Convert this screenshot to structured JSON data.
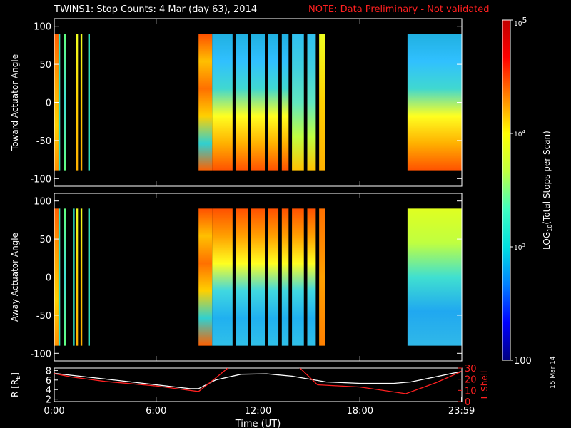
{
  "title": "TWINS1: Stop Counts:  4 Mar (day  63), 2014",
  "note": "NOTE: Data Preliminary - Not validated",
  "date_stamp": "15 Mar 14",
  "colors": {
    "note": "#ff2020",
    "r_line": "#ffffff",
    "lshell_line": "#ff2020",
    "background": "#000000",
    "colorbar_stops": [
      "#000080",
      "#0000ff",
      "#0080ff",
      "#00e0e0",
      "#40ffc0",
      "#c0ff40",
      "#ffff00",
      "#ff8000",
      "#ff0000",
      "#c00000"
    ]
  },
  "chart_data": [
    {
      "type": "heatmap",
      "id": "toward",
      "ylabel": "Toward Actuator Angle",
      "ylim": [
        -110,
        110
      ],
      "yticks": [
        100,
        50,
        0,
        -50,
        -100
      ],
      "data_angle_range": [
        -90,
        90
      ],
      "x_unit": "hours UT",
      "xlim": [
        0,
        24
      ],
      "data_intervals": [
        {
          "start": 0.0,
          "end": 0.25,
          "profile": "orange-yellow"
        },
        {
          "start": 0.25,
          "end": 0.35,
          "profile": "cyan"
        },
        {
          "start": 0.55,
          "end": 0.7,
          "profile": "cyan-green"
        },
        {
          "start": 1.3,
          "end": 1.4,
          "profile": "yellow"
        },
        {
          "start": 1.55,
          "end": 1.65,
          "profile": "yellow"
        },
        {
          "start": 2.0,
          "end": 2.1,
          "profile": "cyan"
        },
        {
          "start": 8.5,
          "end": 9.3,
          "profile": "mixed-orange"
        },
        {
          "start": 9.3,
          "end": 10.5,
          "profile": "blue-top-yellow-bottom"
        },
        {
          "start": 10.7,
          "end": 11.4,
          "profile": "blue-top-yellow-bottom"
        },
        {
          "start": 11.6,
          "end": 12.4,
          "profile": "blue-top-yellow-bottom"
        },
        {
          "start": 12.6,
          "end": 13.2,
          "profile": "blue-top-yellow-bottom"
        },
        {
          "start": 13.4,
          "end": 13.8,
          "profile": "blue-top-yellow-bottom"
        },
        {
          "start": 14.0,
          "end": 14.7,
          "profile": "cyan-mid"
        },
        {
          "start": 14.9,
          "end": 15.4,
          "profile": "cyan-mid"
        },
        {
          "start": 15.6,
          "end": 15.95,
          "profile": "yellow"
        },
        {
          "start": 20.8,
          "end": 23.99,
          "profile": "blue-top-yellow-bottom"
        }
      ]
    },
    {
      "type": "heatmap",
      "id": "away",
      "ylabel": "Away Actuator Angle",
      "ylim": [
        -110,
        110
      ],
      "yticks": [
        100,
        50,
        0,
        -50,
        -100
      ],
      "data_angle_range": [
        -90,
        90
      ],
      "x_unit": "hours UT",
      "xlim": [
        0,
        24
      ],
      "data_intervals": [
        {
          "start": 0.0,
          "end": 0.25,
          "profile": "orange-yellow"
        },
        {
          "start": 0.25,
          "end": 0.35,
          "profile": "cyan"
        },
        {
          "start": 0.55,
          "end": 0.7,
          "profile": "cyan-green"
        },
        {
          "start": 1.1,
          "end": 1.2,
          "profile": "cyan"
        },
        {
          "start": 1.3,
          "end": 1.4,
          "profile": "yellow"
        },
        {
          "start": 1.55,
          "end": 1.65,
          "profile": "yellow"
        },
        {
          "start": 2.0,
          "end": 2.1,
          "profile": "cyan"
        },
        {
          "start": 8.5,
          "end": 9.3,
          "profile": "mixed-orange"
        },
        {
          "start": 9.3,
          "end": 10.5,
          "profile": "orange-top-blue-bottom"
        },
        {
          "start": 10.7,
          "end": 11.4,
          "profile": "orange-top-blue-bottom"
        },
        {
          "start": 11.6,
          "end": 12.4,
          "profile": "orange-top-blue-bottom"
        },
        {
          "start": 12.6,
          "end": 13.2,
          "profile": "orange-top-blue-bottom"
        },
        {
          "start": 13.4,
          "end": 13.8,
          "profile": "orange-top-blue-bottom"
        },
        {
          "start": 14.0,
          "end": 14.7,
          "profile": "orange-top-blue-bottom"
        },
        {
          "start": 14.9,
          "end": 15.4,
          "profile": "orange-top-blue-bottom"
        },
        {
          "start": 15.6,
          "end": 15.95,
          "profile": "orange"
        },
        {
          "start": 20.8,
          "end": 23.99,
          "profile": "yellow-top-blue-bottom"
        }
      ]
    },
    {
      "type": "line",
      "id": "orbit",
      "xlabel": "Time (UT)",
      "xlim": [
        0,
        24
      ],
      "xticks": [
        0,
        6,
        12,
        18,
        23.983
      ],
      "xtick_labels": [
        "0:00",
        "6:00",
        "12:00",
        "18:00",
        "23:59"
      ],
      "ylabel_left": "R [R",
      "ylabel_left_sub": "E",
      "ylabel_left_end": "]",
      "ylim_left": [
        1.5,
        8.5
      ],
      "yticks_left": [
        8,
        6,
        4,
        2
      ],
      "ylabel_right": "L Shell",
      "ylim_right": [
        0,
        30
      ],
      "yticks_right": [
        30,
        20,
        10,
        0
      ],
      "series": [
        {
          "axis": "left",
          "color": "#ffffff",
          "x": [
            0,
            1,
            3,
            6,
            8,
            8.5,
            9.5,
            11,
            12.5,
            14,
            16,
            18,
            20,
            21,
            22.5,
            23.99
          ],
          "y": [
            7.4,
            7.0,
            6.2,
            5.0,
            4.2,
            4.2,
            6.0,
            7.2,
            7.3,
            6.8,
            5.6,
            5.3,
            5.3,
            5.6,
            6.7,
            7.8
          ]
        },
        {
          "axis": "right",
          "color": "#ff2020",
          "x": [
            0,
            1,
            3,
            6,
            8.5,
            9.5,
            10.3,
            14.4,
            15.5,
            18,
            20.7,
            22.5,
            23.99
          ],
          "y": [
            25,
            22,
            18,
            14,
            9,
            21,
            31,
            31,
            15,
            13,
            7,
            17,
            27
          ]
        }
      ]
    },
    {
      "type": "colorbar",
      "id": "colorbar",
      "label_main": "LOG",
      "label_sub": "10",
      "label_rest": "(Total Stops per Scan)",
      "range": [
        100,
        100000
      ],
      "tick_values": [
        100,
        1000,
        10000,
        100000
      ],
      "tick_labels": [
        "100",
        "10",
        "10",
        "10"
      ],
      "tick_exponents": [
        "",
        "3",
        "4",
        "5"
      ],
      "log_scale": true
    }
  ]
}
